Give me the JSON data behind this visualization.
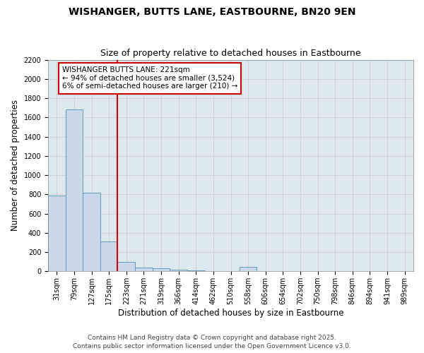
{
  "title": "WISHANGER, BUTTS LANE, EASTBOURNE, BN20 9EN",
  "subtitle": "Size of property relative to detached houses in Eastbourne",
  "xlabel": "Distribution of detached houses by size in Eastbourne",
  "ylabel": "Number of detached properties",
  "categories": [
    "31sqm",
    "79sqm",
    "127sqm",
    "175sqm",
    "223sqm",
    "271sqm",
    "319sqm",
    "366sqm",
    "414sqm",
    "462sqm",
    "510sqm",
    "558sqm",
    "606sqm",
    "654sqm",
    "702sqm",
    "750sqm",
    "798sqm",
    "846sqm",
    "894sqm",
    "941sqm",
    "989sqm"
  ],
  "values": [
    790,
    1680,
    820,
    310,
    100,
    40,
    35,
    15,
    10,
    5,
    3,
    50,
    3,
    2,
    2,
    2,
    2,
    2,
    2,
    2,
    2
  ],
  "bar_color": "#c8d8e8",
  "bar_edge_color": "#6699bb",
  "vline_color": "#cc0000",
  "annotation_text": "WISHANGER BUTTS LANE: 221sqm\n← 94% of detached houses are smaller (3,524)\n6% of semi-detached houses are larger (210) →",
  "annotation_box_color": "#ffffff",
  "annotation_box_edge": "#cc0000",
  "ylim": [
    0,
    2200
  ],
  "yticks": [
    0,
    200,
    400,
    600,
    800,
    1000,
    1200,
    1400,
    1600,
    1800,
    2000,
    2200
  ],
  "grid_color": "#cccccc",
  "plot_bg_color": "#dce8f0",
  "fig_bg_color": "#ffffff",
  "footer1": "Contains HM Land Registry data © Crown copyright and database right 2025.",
  "footer2": "Contains public sector information licensed under the Open Government Licence v3.0.",
  "title_fontsize": 10,
  "subtitle_fontsize": 9,
  "axis_label_fontsize": 8.5,
  "tick_fontsize": 7,
  "annotation_fontsize": 7.5,
  "footer_fontsize": 6.5
}
